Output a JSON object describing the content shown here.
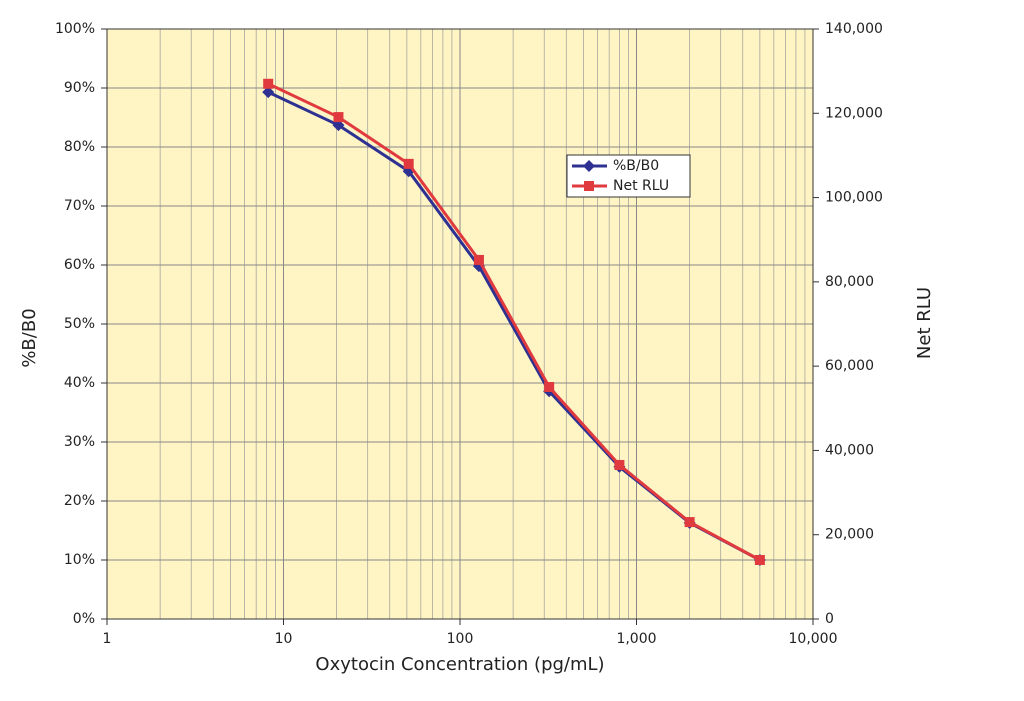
{
  "chart_data": {
    "type": "line",
    "xlabel": "Oxytocin Concentration (pg/mL)",
    "ylabel": "%B/B0",
    "y2label": "Net RLU",
    "x": [
      8.19,
      20.48,
      51.2,
      128,
      320,
      800,
      2000,
      5000
    ],
    "series": [
      {
        "name": "%B/B0",
        "color": "#2e3192",
        "marker": "diamond",
        "values": [
          89.3,
          83.7,
          75.9,
          59.8,
          38.6,
          25.8,
          16.3,
          10.0
        ]
      },
      {
        "name": "Net RLU",
        "color": "#e03a3e",
        "marker": "square",
        "axis": "y2",
        "values": [
          127000,
          119100,
          108000,
          85200,
          55050,
          36550,
          23000,
          14000
        ]
      }
    ],
    "xscale": "log",
    "xlim": [
      1,
      10000
    ],
    "xticks": [
      1,
      10,
      100,
      {
        "value": 1000,
        "label": "1,000"
      },
      {
        "value": 10000,
        "label": "10,000"
      }
    ],
    "xminorticks": [
      2,
      3,
      4,
      5,
      6,
      7,
      8,
      9,
      20,
      30,
      40,
      50,
      60,
      70,
      80,
      90,
      200,
      300,
      400,
      500,
      600,
      700,
      800,
      900,
      2000,
      3000,
      4000,
      5000,
      6000,
      7000,
      8000,
      9000
    ],
    "ylim": [
      0,
      100
    ],
    "yticks": [
      {
        "value": 0,
        "label": "0%"
      },
      {
        "value": 10,
        "label": "10%"
      },
      {
        "value": 20,
        "label": "20%"
      },
      {
        "value": 30,
        "label": "30%"
      },
      {
        "value": 40,
        "label": "40%"
      },
      {
        "value": 50,
        "label": "50%"
      },
      {
        "value": 60,
        "label": "60%"
      },
      {
        "value": 70,
        "label": "70%"
      },
      {
        "value": 80,
        "label": "80%"
      },
      {
        "value": 90,
        "label": "90%"
      },
      {
        "value": 100,
        "label": "100%"
      }
    ],
    "y2lim": [
      0,
      140000
    ],
    "y2ticks": [
      0,
      {
        "value": 20000,
        "label": "20,000"
      },
      {
        "value": 40000,
        "label": "40,000"
      },
      {
        "value": 60000,
        "label": "60,000"
      },
      {
        "value": 80000,
        "label": "80,000"
      },
      {
        "value": 100000,
        "label": "100,000"
      },
      {
        "value": 120000,
        "label": "120,000"
      },
      {
        "value": 140000,
        "label": "140,000"
      }
    ],
    "grid": true,
    "background": "#fff5c4"
  }
}
